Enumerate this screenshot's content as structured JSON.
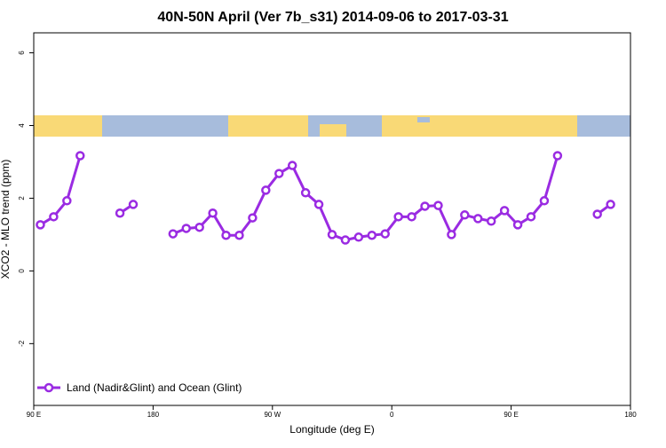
{
  "chart_data": {
    "type": "line",
    "title": "40N-50N April (Ver 7b_s31)   2014-09-06 to 2017-03-31",
    "xlabel": "Longitude (deg E)",
    "ylabel": "XCO2 - MLO trend (ppm)",
    "x": [
      95,
      105,
      115,
      125,
      135,
      145,
      155,
      165,
      175,
      185,
      195,
      205,
      215,
      225,
      235,
      245,
      255,
      265,
      275,
      285,
      295,
      305,
      315,
      325,
      335,
      345,
      355,
      365,
      375,
      385,
      395,
      405,
      415,
      425,
      435,
      445,
      455,
      465,
      475,
      485,
      495,
      505,
      515,
      525
    ],
    "series": [
      {
        "name": "Land (Nadir&Glint) and Ocean (Glint)",
        "color": "#9a2be2",
        "values": [
          1.27,
          1.49,
          1.93,
          3.17,
          null,
          null,
          1.59,
          1.83,
          null,
          null,
          1.02,
          1.17,
          1.2,
          1.59,
          0.98,
          0.98,
          1.46,
          2.22,
          2.68,
          2.9,
          2.15,
          1.83,
          1.0,
          0.85,
          0.93,
          0.98,
          1.02,
          1.49,
          1.49,
          1.78,
          1.8,
          1.0,
          1.54,
          1.44,
          1.37,
          1.66,
          1.27,
          1.49,
          1.93,
          3.17,
          null,
          null,
          1.56,
          1.83
        ]
      }
    ],
    "xlim": [
      90,
      540
    ],
    "xticks": [
      {
        "value": 90,
        "label": "90 E"
      },
      180,
      {
        "value": 270,
        "label": "90 W"
      },
      {
        "value": 360,
        "label": "0"
      },
      {
        "value": 450,
        "label": "90 E"
      },
      {
        "value": 540,
        "label": "180"
      }
    ],
    "ylim": [
      -3.7,
      6.55
    ],
    "yticks": [
      -2,
      0,
      2,
      4,
      6
    ],
    "legend": "bottom-left"
  }
}
